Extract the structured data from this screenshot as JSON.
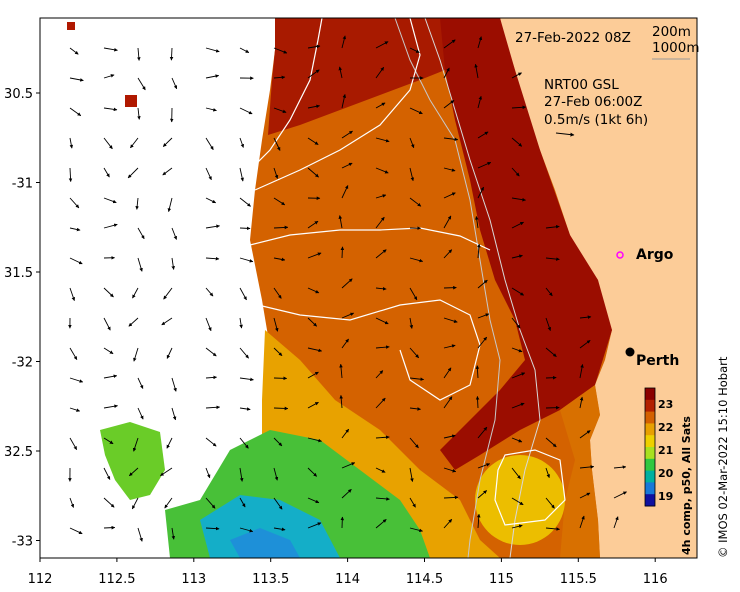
{
  "map": {
    "title_date": "27-Feb-2022 08Z",
    "depth_labels": [
      "200m",
      "1000m"
    ],
    "current_info": {
      "line1": "NRT00 GSL",
      "line2": "27-Feb 06:00Z",
      "line3": "0.5m/s (1kt 6h)"
    },
    "lon_ticks": [
      "112",
      "112.5",
      "113",
      "113.5",
      "114",
      "114.5",
      "115",
      "115.5",
      "116"
    ],
    "lat_ticks": [
      "30.5",
      "-31",
      "31.5",
      "-32",
      "32.5",
      "-33"
    ],
    "places": [
      {
        "name": "Argo",
        "type": "float"
      },
      {
        "name": "Perth",
        "type": "city"
      }
    ],
    "colorbar": {
      "title": "4h comp, p50, All Sats",
      "ticks": [
        "23",
        "22",
        "21",
        "20",
        "19"
      ],
      "colors": [
        "#8b0000",
        "#b22000",
        "#d46000",
        "#e8a000",
        "#eed000",
        "#a8e020",
        "#30c840",
        "#00b0a0",
        "#1878d8",
        "#1010a0"
      ]
    },
    "credit": "© IMOS 02-Mar-2022 15:10 Hobart",
    "colors": {
      "land": "#fccc98",
      "sst_hot": "#9b0d00",
      "sst_warm": "#d25e00",
      "sst_mid": "#eba700",
      "sst_cool": "#42c03a",
      "sst_cold": "#14aec8",
      "argo_marker": "#ff00ff"
    }
  }
}
